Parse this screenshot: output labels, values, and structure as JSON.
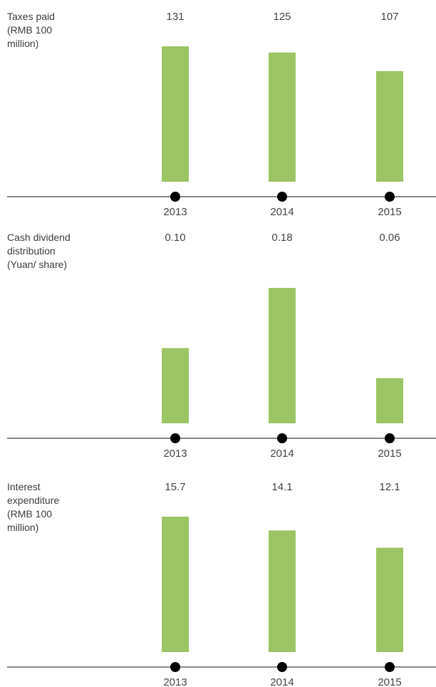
{
  "colors": {
    "bar": "#9dc464",
    "axis": "#111111",
    "marker": "#000000"
  },
  "chart_data": [
    {
      "type": "bar",
      "title": "Taxes paid\n(RMB 100\nmillion)",
      "categories": [
        "2013",
        "2014",
        "2015"
      ],
      "values": [
        131,
        125,
        107
      ],
      "value_labels": [
        "131",
        "125",
        "107"
      ],
      "ylim": [
        0,
        131
      ]
    },
    {
      "type": "bar",
      "title": "Cash dividend\ndistribution\n(Yuan/ share)",
      "categories": [
        "2013",
        "2014",
        "2015"
      ],
      "values": [
        0.1,
        0.18,
        0.06
      ],
      "value_labels": [
        "0.10",
        "0.18",
        "0.06"
      ],
      "ylim": [
        0,
        0.18
      ]
    },
    {
      "type": "bar",
      "title": "Interest\nexpenditure\n(RMB 100\nmillion)",
      "categories": [
        "2013",
        "2014",
        "2015"
      ],
      "values": [
        15.7,
        14.1,
        12.1
      ],
      "value_labels": [
        "15.7",
        "14.1",
        "12.1"
      ],
      "ylim": [
        0,
        15.7
      ]
    }
  ]
}
